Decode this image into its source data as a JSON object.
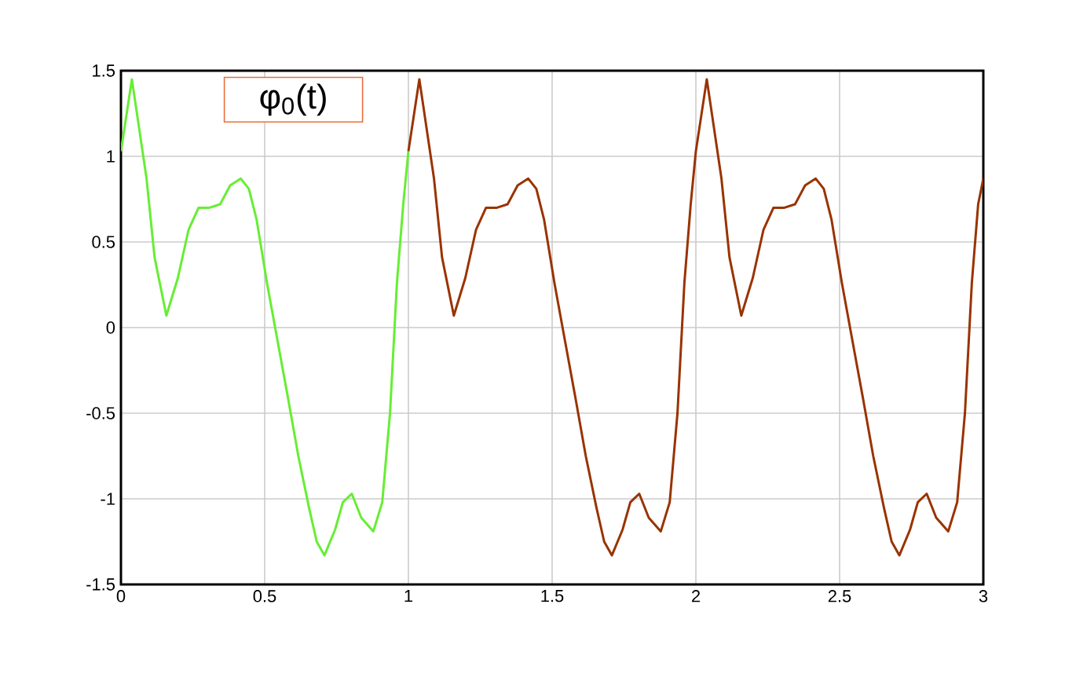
{
  "chart_data": {
    "type": "line",
    "title": "φ$_{0}$(t)",
    "xlim": [
      0,
      3
    ],
    "ylim": [
      -1.5,
      1.5
    ],
    "xticks": [
      0,
      0.5,
      1,
      1.5,
      2,
      2.5,
      3
    ],
    "yticks": [
      -1.5,
      -1,
      -0.5,
      0,
      0.5,
      1,
      1.5
    ],
    "grid": true,
    "marker": "none",
    "line_style": "solid",
    "series": [
      {
        "color": "#66ee33",
        "x": [
          0,
          0.038,
          0.089,
          0.117,
          0.158,
          0.198,
          0.235,
          0.27,
          0.308,
          0.345,
          0.38,
          0.417,
          0.445,
          0.472,
          0.508,
          0.545,
          0.581,
          0.617,
          0.654,
          0.681,
          0.708,
          0.745,
          0.772,
          0.803,
          0.836,
          0.878,
          0.909,
          0.936,
          0.96,
          0.982,
          1
        ],
        "values": [
          1.03,
          1.45,
          0.87,
          0.41,
          0.07,
          0.29,
          0.57,
          0.7,
          0.7,
          0.72,
          0.83,
          0.87,
          0.81,
          0.63,
          0.26,
          -0.08,
          -0.41,
          -0.75,
          -1.05,
          -1.25,
          -1.33,
          -1.18,
          -1.02,
          -0.97,
          -1.11,
          -1.19,
          -1.02,
          -0.5,
          0.26,
          0.72,
          1.03
        ]
      },
      {
        "color": "#993300",
        "x": [
          1,
          1.038,
          1.089,
          1.117,
          1.158,
          1.198,
          1.235,
          1.27,
          1.308,
          1.345,
          1.38,
          1.417,
          1.445,
          1.472,
          1.508,
          1.545,
          1.581,
          1.617,
          1.654,
          1.681,
          1.708,
          1.745,
          1.772,
          1.803,
          1.836,
          1.878,
          1.909,
          1.936,
          1.96,
          1.982,
          2,
          2.038,
          2.089,
          2.117,
          2.158,
          2.198,
          2.235,
          2.27,
          2.308,
          2.345,
          2.38,
          2.417,
          2.445,
          2.472,
          2.508,
          2.545,
          2.581,
          2.617,
          2.654,
          2.681,
          2.708,
          2.745,
          2.772,
          2.803,
          2.836,
          2.878,
          2.909,
          2.936,
          2.96,
          2.982,
          3
        ],
        "values": [
          1.03,
          1.45,
          0.87,
          0.41,
          0.07,
          0.29,
          0.57,
          0.7,
          0.7,
          0.72,
          0.83,
          0.87,
          0.81,
          0.63,
          0.26,
          -0.08,
          -0.41,
          -0.75,
          -1.05,
          -1.25,
          -1.33,
          -1.18,
          -1.02,
          -0.97,
          -1.11,
          -1.19,
          -1.02,
          -0.5,
          0.26,
          0.72,
          1.03,
          1.45,
          0.87,
          0.41,
          0.07,
          0.29,
          0.57,
          0.7,
          0.7,
          0.72,
          0.83,
          0.87,
          0.81,
          0.63,
          0.26,
          -0.08,
          -0.41,
          -0.75,
          -1.05,
          -1.25,
          -1.33,
          -1.18,
          -1.02,
          -0.97,
          -1.11,
          -1.19,
          -1.02,
          -0.5,
          0.26,
          0.72,
          0.87
        ]
      }
    ]
  }
}
